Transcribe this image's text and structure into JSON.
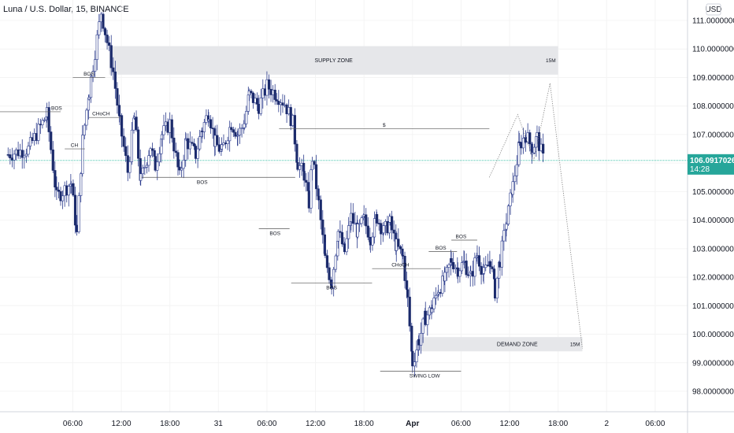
{
  "title": "Luna / U.S. Dollar, 15, BINANCE",
  "colors": {
    "bull_body": "#ffffff",
    "bull_border": "#2a3a8c",
    "bear_body": "#1b2a6b",
    "current_line": "#2bbca0",
    "price_badge": "#26a69a",
    "zone_fill": "#e6e7ea",
    "grid": "#f4f4f4",
    "axis_line": "#d1d4dc",
    "annotation": "#555555"
  },
  "chart_data": {
    "type": "candlestick",
    "currency_label": "USD",
    "ylim": [
      97.5,
      111.5
    ],
    "y_ticks": [
      111,
      110,
      109,
      108,
      107,
      106,
      105,
      104,
      103,
      102,
      101,
      100,
      99,
      98
    ],
    "y_tick_labels": [
      "111.0000000",
      "110.0000000",
      "109.0000000",
      "108.0000000",
      "107.0000000",
      "106.0000000",
      "105.0000000",
      "104.0000000",
      "103.0000000",
      "102.0000000",
      "101.0000000",
      "100.0000000",
      "99.0000000",
      "98.0000000"
    ],
    "x_tick_labels": [
      "06:00",
      "12:00",
      "18:00",
      "31",
      "06:00",
      "12:00",
      "18:00",
      "Apr",
      "06:00",
      "12:00",
      "18:00",
      "2",
      "06:00"
    ],
    "x_tick_hours": [
      6,
      12,
      18,
      24,
      30,
      36,
      42,
      48,
      54,
      60,
      66,
      72,
      78
    ],
    "bold_x_labels": [
      "Apr"
    ],
    "grid": true,
    "current_price": "106.0917026",
    "current_price_value": 106.0917026,
    "countdown": "14:28",
    "candle_start_hour": 0.0,
    "candle_interval_hours": 0.25,
    "closes": [
      105.9,
      106.3,
      105.8,
      105.7,
      106.1,
      106.5,
      106.9,
      106.4,
      106.8,
      107.2,
      106.7,
      107.0,
      106.4,
      107.3,
      106.8,
      106.5,
      105.5,
      104.8,
      106.3,
      106.2,
      106.0,
      105.7,
      105.5,
      104.9,
      105.3,
      105.7,
      106.2,
      105.6,
      106.6,
      107.6,
      108.3,
      107.8,
      108.3,
      107.8,
      108.6,
      109.5,
      110.0,
      110.5,
      111.1,
      110.6,
      110.9,
      110.3,
      109.7,
      109.1,
      108.9,
      109.1,
      108.2,
      107.9,
      108.2,
      107.5,
      107.8,
      107.6,
      107.1,
      107.8,
      107.6,
      107.0,
      106.6,
      106.0,
      106.3,
      106.2,
      105.9,
      105.8,
      105.7,
      105.5,
      105.7,
      105.9,
      106.2,
      106.0,
      106.5,
      106.8,
      106.3,
      106.4,
      107.1,
      107.6,
      106.7,
      106.9,
      107.3,
      106.9,
      106.5,
      106.2,
      106.6,
      106.8,
      106.6,
      106.4,
      106.2,
      106.8,
      107.1,
      106.5,
      107.0,
      106.8,
      107.5,
      107.6,
      107.3,
      107.0,
      107.3,
      107.7,
      107.3,
      107.6,
      107.8,
      107.5,
      108.2,
      108.7,
      108.0,
      108.6,
      107.4,
      108.0,
      107.9,
      108.5,
      108.3,
      107.9,
      106.9,
      106.4,
      105.4,
      104.5,
      103.9,
      105.0,
      106.0,
      104.4,
      104.3,
      103.3,
      103.0,
      102.8,
      102.1,
      102.6,
      103.1,
      102.7,
      102.9,
      103.3,
      103.9,
      103.7,
      103.9,
      103.1,
      104.0,
      103.5,
      103.9,
      103.3,
      103.6,
      103.3,
      103.2,
      103.6,
      103.6,
      103.4,
      104.1,
      103.6,
      103.8,
      103.5,
      103.6,
      104.2,
      104.0,
      103.6,
      102.8,
      103.3,
      103.6,
      103.2,
      103.3,
      103.0,
      102.3,
      101.2,
      100.0,
      99.4,
      98.8,
      99.7,
      100.0,
      100.5,
      100.1,
      100.6,
      101.0,
      101.3,
      100.6,
      101.4,
      101.0,
      101.3,
      101.7,
      101.6,
      101.8,
      102.2,
      102.5,
      102.1,
      102.4,
      102.7,
      102.7,
      102.0,
      102.3,
      102.6,
      102.2,
      102.9,
      102.3,
      102.5,
      102.6,
      102.1,
      102.7,
      103.0,
      101.8,
      101.5,
      102.9,
      103.2,
      103.9,
      104.5,
      105.3,
      106.0,
      106.7,
      107.1,
      106.8,
      106.5,
      107.0,
      106.3,
      106.7,
      106.2,
      106.09
    ],
    "swing_points": [
      {
        "h": -2.0,
        "y": 106.3
      },
      {
        "h": 0.5,
        "y": 106.5
      },
      {
        "h": 2.8,
        "y": 107.7
      },
      {
        "h": 4.0,
        "y": 104.8
      },
      {
        "h": 5.8,
        "y": 105.3
      },
      {
        "h": 6.5,
        "y": 103.5
      },
      {
        "h": 7.2,
        "y": 106.8
      },
      {
        "h": 8.0,
        "y": 108.5
      },
      {
        "h": 9.5,
        "y": 111.3
      },
      {
        "h": 11.0,
        "y": 109.2
      },
      {
        "h": 11.8,
        "y": 107.4
      },
      {
        "h": 12.8,
        "y": 105.7
      },
      {
        "h": 13.6,
        "y": 107.6
      },
      {
        "h": 14.4,
        "y": 105.4
      },
      {
        "h": 15.6,
        "y": 106.6
      },
      {
        "h": 16.2,
        "y": 105.9
      },
      {
        "h": 17.0,
        "y": 107.0
      },
      {
        "h": 18.0,
        "y": 107.4
      },
      {
        "h": 19.2,
        "y": 105.5
      },
      {
        "h": 20.0,
        "y": 106.8
      },
      {
        "h": 21.2,
        "y": 106.3
      },
      {
        "h": 22.0,
        "y": 107.2
      },
      {
        "h": 22.8,
        "y": 107.8
      },
      {
        "h": 23.6,
        "y": 106.7
      },
      {
        "h": 24.4,
        "y": 106.4
      },
      {
        "h": 25.6,
        "y": 107.4
      },
      {
        "h": 26.4,
        "y": 107.0
      },
      {
        "h": 27.2,
        "y": 107.4
      },
      {
        "h": 27.8,
        "y": 108.4
      },
      {
        "h": 29.0,
        "y": 108.0
      },
      {
        "h": 30.0,
        "y": 108.7
      },
      {
        "h": 31.2,
        "y": 108.4
      },
      {
        "h": 32.2,
        "y": 108.1
      },
      {
        "h": 33.2,
        "y": 107.4
      },
      {
        "h": 33.8,
        "y": 106.0
      },
      {
        "h": 34.6,
        "y": 105.6
      },
      {
        "h": 35.2,
        "y": 104.6
      },
      {
        "h": 35.6,
        "y": 106.2
      },
      {
        "h": 36.4,
        "y": 104.6
      },
      {
        "h": 37.2,
        "y": 102.6
      },
      {
        "h": 38.0,
        "y": 101.8
      },
      {
        "h": 38.8,
        "y": 103.6
      },
      {
        "h": 39.6,
        "y": 102.9
      },
      {
        "h": 40.4,
        "y": 104.1
      },
      {
        "h": 41.2,
        "y": 103.6
      },
      {
        "h": 42.0,
        "y": 104.0
      },
      {
        "h": 42.8,
        "y": 103.4
      },
      {
        "h": 43.6,
        "y": 104.1
      },
      {
        "h": 44.4,
        "y": 103.6
      },
      {
        "h": 45.2,
        "y": 103.9
      },
      {
        "h": 46.0,
        "y": 103.1
      },
      {
        "h": 46.8,
        "y": 102.7
      },
      {
        "h": 47.4,
        "y": 101.2
      },
      {
        "h": 48.0,
        "y": 99.0
      },
      {
        "h": 48.8,
        "y": 99.8
      },
      {
        "h": 49.6,
        "y": 100.6
      },
      {
        "h": 50.4,
        "y": 100.9
      },
      {
        "h": 51.2,
        "y": 101.6
      },
      {
        "h": 52.0,
        "y": 101.9
      },
      {
        "h": 52.8,
        "y": 102.6
      },
      {
        "h": 53.6,
        "y": 102.3
      },
      {
        "h": 54.4,
        "y": 102.5
      },
      {
        "h": 55.2,
        "y": 102.0
      },
      {
        "h": 56.0,
        "y": 102.8
      },
      {
        "h": 56.8,
        "y": 102.1
      },
      {
        "h": 57.6,
        "y": 102.6
      },
      {
        "h": 58.2,
        "y": 101.5
      },
      {
        "h": 58.8,
        "y": 102.6
      },
      {
        "h": 59.6,
        "y": 103.9
      },
      {
        "h": 60.4,
        "y": 105.2
      },
      {
        "h": 61.2,
        "y": 106.6
      },
      {
        "h": 62.0,
        "y": 107.0
      },
      {
        "h": 62.8,
        "y": 106.5
      },
      {
        "h": 63.4,
        "y": 106.9
      },
      {
        "h": 64.2,
        "y": 106.1
      }
    ],
    "zones": [
      {
        "label": "SUPPLY ZONE",
        "tag": "15M",
        "x0": 10.5,
        "x1": 66.0,
        "y0": 109.1,
        "y1": 110.1
      },
      {
        "label": "DEMAND ZONE",
        "tag": "15M",
        "x0": 49.0,
        "x1": 69.0,
        "y0": 99.4,
        "y1": 99.9
      }
    ],
    "annotations": [
      {
        "label": "BOS",
        "x0": -3.0,
        "x1": 14.0,
        "y": 111.9,
        "text_x": null
      },
      {
        "label": "BOS",
        "x0": 6.0,
        "x1": 10.0,
        "y": 109.0,
        "text_x": 8.0
      },
      {
        "label": "BOS",
        "x0": -5.0,
        "x1": 4.5,
        "y": 107.8,
        "text_x": 4.0
      },
      {
        "label": "CHoCH",
        "x0": 8.0,
        "x1": 12.0,
        "y": 107.6,
        "text_x": 9.5
      },
      {
        "label": "CH",
        "x0": 5.0,
        "x1": 7.5,
        "y": 106.5,
        "text_x": 6.2
      },
      {
        "label": "BOS",
        "x0": 14.5,
        "x1": 33.5,
        "y": 105.5,
        "text_x": 22.0
      },
      {
        "label": "BOS",
        "x0": 29.0,
        "x1": 32.8,
        "y": 103.7,
        "text_x": 31.0
      },
      {
        "label": "BOS",
        "x0": 33.0,
        "x1": 43.0,
        "y": 101.8,
        "text_x": 38.0
      },
      {
        "label": "CHoCH",
        "x0": 43.0,
        "x1": 51.5,
        "y": 102.3,
        "text_x": 46.5
      },
      {
        "label": "BOS",
        "x0": 50.0,
        "x1": 53.5,
        "y": 102.9,
        "text_x": 51.5
      },
      {
        "label": "BOS",
        "x0": 52.8,
        "x1": 56.0,
        "y": 103.3,
        "text_x": 54.0
      },
      {
        "label": "$",
        "x0": 31.5,
        "x1": 57.5,
        "y": 107.2,
        "text_x": 44.5
      },
      {
        "label": "SWING LOW",
        "x0": 44.0,
        "x1": 54.0,
        "y": 98.7,
        "text_x": 49.5
      }
    ],
    "projection": [
      {
        "h": 57.5,
        "y": 105.5
      },
      {
        "h": 61.0,
        "y": 107.7
      },
      {
        "h": 63.0,
        "y": 106.1
      },
      {
        "h": 65.0,
        "y": 108.8
      },
      {
        "h": 69.0,
        "y": 99.5
      }
    ]
  }
}
